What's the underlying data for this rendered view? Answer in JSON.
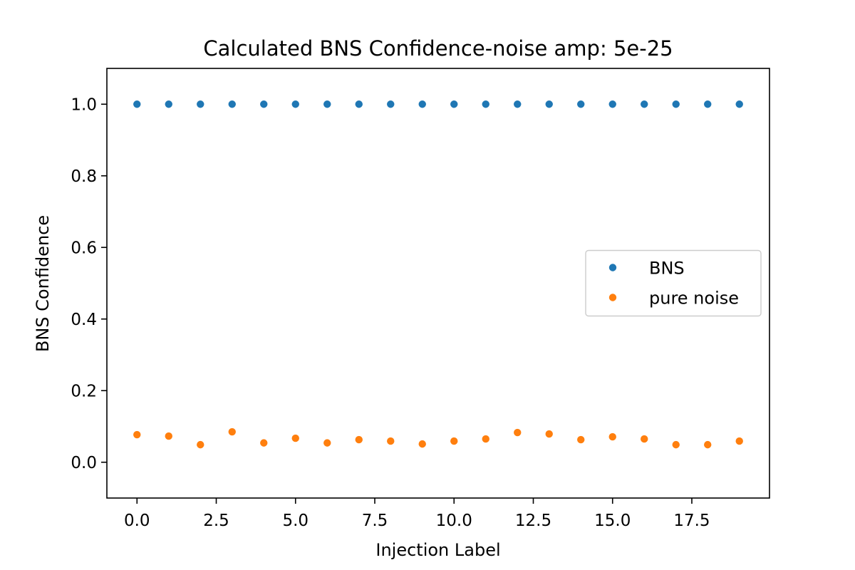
{
  "chart_data": {
    "type": "scatter",
    "title": "Calculated BNS Confidence-noise amp: 5e-25",
    "xlabel": "Injection Label",
    "ylabel": "BNS Confidence",
    "xlim": [
      -0.95,
      19.95
    ],
    "ylim": [
      -0.1,
      1.1
    ],
    "xticks": [
      0,
      2.5,
      5,
      7.5,
      10,
      12.5,
      15,
      17.5
    ],
    "xtick_labels": [
      "0.0",
      "2.5",
      "5.0",
      "7.5",
      "10.0",
      "12.5",
      "15.0",
      "17.5"
    ],
    "yticks": [
      0.0,
      0.2,
      0.4,
      0.6,
      0.8,
      1.0
    ],
    "ytick_labels": [
      "0.0",
      "0.2",
      "0.4",
      "0.6",
      "0.8",
      "1.0"
    ],
    "grid": false,
    "legend_position": "center-right",
    "x": [
      0,
      1,
      2,
      3,
      4,
      5,
      6,
      7,
      8,
      9,
      10,
      11,
      12,
      13,
      14,
      15,
      16,
      17,
      18,
      19
    ],
    "series": [
      {
        "name": "BNS",
        "color": "#1f77b4",
        "values": [
          1.0,
          1.0,
          1.0,
          1.0,
          1.0,
          1.0,
          1.0,
          1.0,
          1.0,
          1.0,
          1.0,
          1.0,
          1.0,
          1.0,
          1.0,
          1.0,
          1.0,
          1.0,
          1.0,
          1.0
        ]
      },
      {
        "name": "pure noise",
        "color": "#ff7f0e",
        "values": [
          0.077,
          0.073,
          0.049,
          0.085,
          0.054,
          0.067,
          0.054,
          0.063,
          0.059,
          0.051,
          0.059,
          0.065,
          0.083,
          0.079,
          0.063,
          0.071,
          0.065,
          0.049,
          0.049,
          0.059
        ]
      }
    ]
  }
}
